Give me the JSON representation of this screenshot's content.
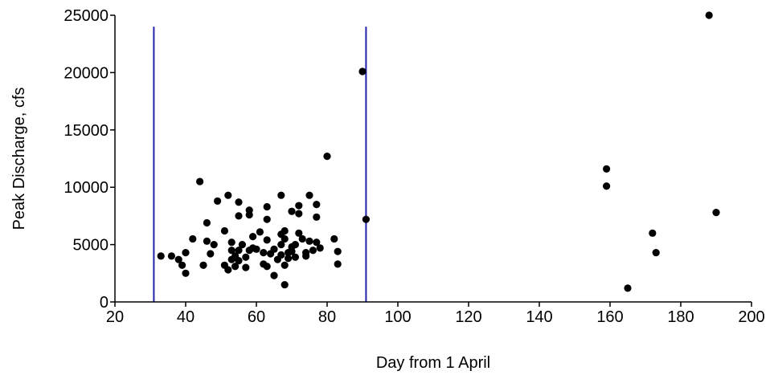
{
  "chart_data": {
    "type": "scatter",
    "title": "",
    "xlabel": "Day from 1 April",
    "ylabel": "Peak Discharge, cfs",
    "xlim": [
      20,
      200
    ],
    "ylim": [
      0,
      25000
    ],
    "xticks": [
      "20",
      "40",
      "60",
      "80",
      "100",
      "120",
      "140",
      "160",
      "180",
      "200"
    ],
    "yticks": [
      "0",
      "5000",
      "10000",
      "15000",
      "20000",
      "25000"
    ],
    "grid": false,
    "legend": "none",
    "marker_color": "#000000",
    "reference_line_color": "#1f1fb0",
    "vertical_lines": [
      {
        "x": 31,
        "y_range": [
          0,
          24000
        ]
      },
      {
        "x": 91,
        "y_range": [
          0,
          24000
        ]
      }
    ],
    "points": [
      {
        "x": 33,
        "y": 4000
      },
      {
        "x": 36,
        "y": 4000
      },
      {
        "x": 38,
        "y": 3700
      },
      {
        "x": 39,
        "y": 3200
      },
      {
        "x": 40,
        "y": 4300
      },
      {
        "x": 40,
        "y": 2500
      },
      {
        "x": 42,
        "y": 5500
      },
      {
        "x": 44,
        "y": 10500
      },
      {
        "x": 45,
        "y": 3200
      },
      {
        "x": 46,
        "y": 6900
      },
      {
        "x": 46,
        "y": 5300
      },
      {
        "x": 47,
        "y": 4200
      },
      {
        "x": 48,
        "y": 5000
      },
      {
        "x": 49,
        "y": 8800
      },
      {
        "x": 51,
        "y": 6200
      },
      {
        "x": 51,
        "y": 3200
      },
      {
        "x": 52,
        "y": 9300
      },
      {
        "x": 52,
        "y": 2800
      },
      {
        "x": 53,
        "y": 5200
      },
      {
        "x": 53,
        "y": 4500
      },
      {
        "x": 53,
        "y": 3700
      },
      {
        "x": 54,
        "y": 4000
      },
      {
        "x": 54,
        "y": 3100
      },
      {
        "x": 55,
        "y": 8700
      },
      {
        "x": 55,
        "y": 7500
      },
      {
        "x": 55,
        "y": 4500
      },
      {
        "x": 55,
        "y": 3600
      },
      {
        "x": 56,
        "y": 5000
      },
      {
        "x": 57,
        "y": 3900
      },
      {
        "x": 57,
        "y": 3000
      },
      {
        "x": 58,
        "y": 8000
      },
      {
        "x": 58,
        "y": 7600
      },
      {
        "x": 58,
        "y": 4500
      },
      {
        "x": 59,
        "y": 4700
      },
      {
        "x": 59,
        "y": 5700
      },
      {
        "x": 60,
        "y": 4600
      },
      {
        "x": 61,
        "y": 6100
      },
      {
        "x": 62,
        "y": 4300
      },
      {
        "x": 62,
        "y": 3300
      },
      {
        "x": 63,
        "y": 8300
      },
      {
        "x": 63,
        "y": 7200
      },
      {
        "x": 63,
        "y": 5400
      },
      {
        "x": 63,
        "y": 3100
      },
      {
        "x": 64,
        "y": 4200
      },
      {
        "x": 65,
        "y": 4600
      },
      {
        "x": 65,
        "y": 2300
      },
      {
        "x": 66,
        "y": 3700
      },
      {
        "x": 67,
        "y": 9300
      },
      {
        "x": 67,
        "y": 5900
      },
      {
        "x": 67,
        "y": 5000
      },
      {
        "x": 67,
        "y": 4100
      },
      {
        "x": 68,
        "y": 6200
      },
      {
        "x": 68,
        "y": 5500
      },
      {
        "x": 68,
        "y": 3200
      },
      {
        "x": 68,
        "y": 1500
      },
      {
        "x": 69,
        "y": 4300
      },
      {
        "x": 69,
        "y": 3800
      },
      {
        "x": 70,
        "y": 7900
      },
      {
        "x": 70,
        "y": 4800
      },
      {
        "x": 70,
        "y": 4400
      },
      {
        "x": 71,
        "y": 5000
      },
      {
        "x": 71,
        "y": 3900
      },
      {
        "x": 72,
        "y": 8400
      },
      {
        "x": 72,
        "y": 7700
      },
      {
        "x": 72,
        "y": 6000
      },
      {
        "x": 73,
        "y": 5500
      },
      {
        "x": 74,
        "y": 4300
      },
      {
        "x": 74,
        "y": 4000
      },
      {
        "x": 75,
        "y": 9300
      },
      {
        "x": 75,
        "y": 5300
      },
      {
        "x": 76,
        "y": 4500
      },
      {
        "x": 77,
        "y": 8500
      },
      {
        "x": 77,
        "y": 7400
      },
      {
        "x": 77,
        "y": 5200
      },
      {
        "x": 78,
        "y": 4700
      },
      {
        "x": 80,
        "y": 12700
      },
      {
        "x": 82,
        "y": 5500
      },
      {
        "x": 83,
        "y": 4400
      },
      {
        "x": 83,
        "y": 3300
      },
      {
        "x": 90,
        "y": 20100
      },
      {
        "x": 91,
        "y": 7200
      },
      {
        "x": 159,
        "y": 11600
      },
      {
        "x": 159,
        "y": 10100
      },
      {
        "x": 165,
        "y": 1200
      },
      {
        "x": 172,
        "y": 6000
      },
      {
        "x": 173,
        "y": 4300
      },
      {
        "x": 188,
        "y": 25000
      },
      {
        "x": 190,
        "y": 7800
      }
    ]
  }
}
